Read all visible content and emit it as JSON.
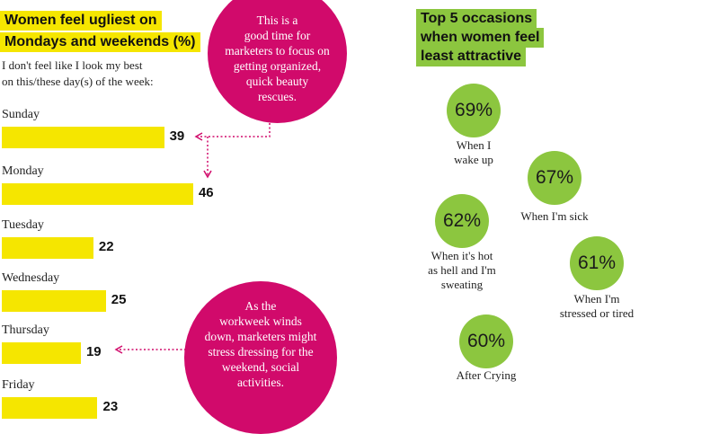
{
  "left_chart": {
    "title_line1": "Women feel ugliest on",
    "title_line2": "Mondays and weekends (%)",
    "subtitle_line1": "I don't feel like I look my best",
    "subtitle_line2": "on this/these day(s) of the week:",
    "bar_color": "#f5e600"
  },
  "chart_data": [
    {
      "type": "bar",
      "orientation": "horizontal",
      "title": "Women feel ugliest on Mondays and weekends (%)",
      "categories": [
        "Sunday",
        "Monday",
        "Tuesday",
        "Wednesday",
        "Thursday",
        "Friday"
      ],
      "values": [
        39,
        46,
        22,
        25,
        19,
        23
      ],
      "value_labels": [
        "39",
        "46",
        "22",
        "25",
        "19",
        "23"
      ]
    },
    {
      "type": "bubble",
      "title": "Top 5 occasions when women feel least attractive",
      "categories": [
        "When I wake up",
        "When I'm sick",
        "When it's hot as hell and I'm sweating",
        "When I'm stressed or tired",
        "After Crying"
      ],
      "values": [
        69,
        67,
        62,
        61,
        60
      ],
      "value_labels": [
        "69%",
        "67%",
        "62%",
        "61%",
        "60%"
      ]
    }
  ],
  "annotations": {
    "top_note": [
      "This is a",
      "good time for",
      "marketers to focus on",
      "getting organized,",
      "quick beauty",
      "rescues."
    ],
    "bottom_note": [
      "As the",
      "workweek winds",
      "down, marketers might",
      "stress dressing for the",
      "weekend, social",
      "activities."
    ],
    "bubble_color": "#d10a6b"
  },
  "right_chart": {
    "title_line1": "Top 5 occasions",
    "title_line2": "when women feel",
    "title_line3": "least attractive",
    "circle_color": "#8cc63f",
    "labels": [
      [
        "When I",
        "wake up"
      ],
      [
        "When I'm sick"
      ],
      [
        "When it's hot",
        "as hell and I'm",
        "sweating"
      ],
      [
        "When I'm",
        "stressed or tired"
      ],
      [
        "After Crying"
      ]
    ]
  }
}
